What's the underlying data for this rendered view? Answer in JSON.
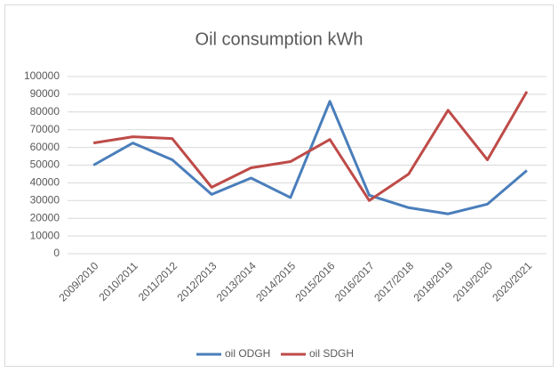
{
  "chart_data": {
    "type": "line",
    "title": "Oil consumption kWh",
    "categories": [
      "2009/2010",
      "2010/2011",
      "2011/2012",
      "2012/2013",
      "2013/2014",
      "2014/2015",
      "2015/2016",
      "2016/2017",
      "2017/2018",
      "2018/2019",
      "2019/2020",
      "2020/2021"
    ],
    "series": [
      {
        "name": "oil ODGH",
        "color": "#4a7ebb",
        "values": [
          50000,
          62500,
          53000,
          33500,
          42700,
          31700,
          86000,
          33000,
          26000,
          22500,
          28000,
          47000
        ]
      },
      {
        "name": "oil SDGH",
        "color": "#be4b48",
        "values": [
          62500,
          66000,
          65000,
          37500,
          48500,
          52000,
          64500,
          30000,
          45000,
          81000,
          53000,
          91500
        ]
      }
    ],
    "ylim": [
      0,
      100000
    ],
    "yticks": [
      0,
      10000,
      20000,
      30000,
      40000,
      50000,
      60000,
      70000,
      80000,
      90000,
      100000
    ],
    "grid": true,
    "legend": "bottom"
  }
}
